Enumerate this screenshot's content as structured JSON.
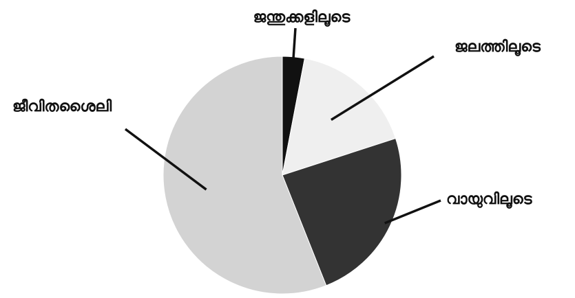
{
  "chart_data": {
    "type": "pie",
    "title": "",
    "start_angle_deg": 0,
    "direction": "clockwise",
    "slices": [
      {
        "label": "ജന്തുക്കളിലൂടെ",
        "value": 3,
        "color": "#111111"
      },
      {
        "label": "ജലത്തിലൂടെ",
        "value": 17,
        "color": "#efefef"
      },
      {
        "label": "വായുവിലൂടെ",
        "value": 24,
        "color": "#333333"
      },
      {
        "label": "ജീവിതശൈലി",
        "value": 56,
        "color": "#d3d3d3"
      }
    ]
  }
}
